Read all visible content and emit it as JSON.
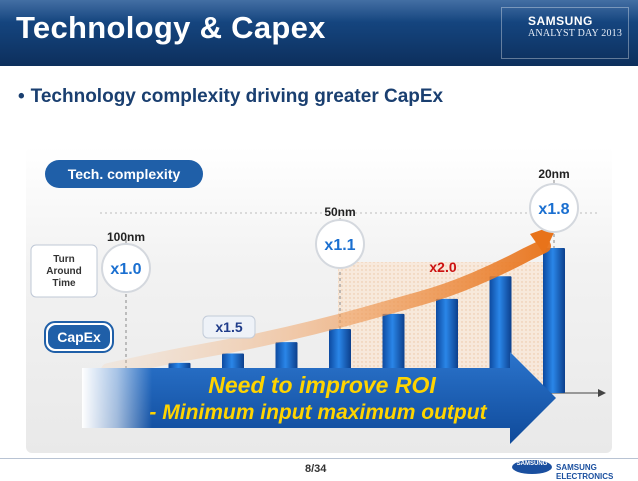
{
  "header": {
    "title": "Technology & Capex",
    "logo_line1": "SAMSUNG",
    "logo_line2": "ANALYST DAY 2013"
  },
  "bullet": "Technology complexity driving greater CapEx",
  "chart_data": {
    "type": "bar",
    "values": [
      1.0,
      1.6,
      2.1,
      2.7,
      3.4,
      4.2,
      5.0,
      6.2,
      7.7
    ],
    "ylim": [
      0,
      8.5
    ],
    "row_labels": {
      "tech_complexity": "Tech. complexity",
      "turnaround_time": "Turn Around Time",
      "capex": "CapEx"
    },
    "nodes": [
      {
        "label": "100nm",
        "multiplier": "x1.0",
        "bar_index": 0
      },
      {
        "label": "50nm",
        "multiplier": "x1.1",
        "bar_index": 4
      },
      {
        "label": "20nm",
        "multiplier": "x1.8",
        "bar_index": 8
      }
    ],
    "growth_labels": [
      {
        "text": "x1.5",
        "color": "#1f3c8a"
      },
      {
        "text": "x2.0",
        "color": "#cc1111"
      }
    ],
    "message": {
      "line1": "Need to improve ROI",
      "line2": "- Minimum input maximum output"
    },
    "colors": {
      "bar": "#1a6fd0",
      "message_arrow": "#1a5fb4",
      "message_text": "#ffd400",
      "curve": "#e8731a",
      "tech_pill": "#1f5fa8"
    }
  },
  "footer": {
    "page": "8/34",
    "logo_text": "SAMSUNG",
    "company": "SAMSUNG ELECTRONICS"
  }
}
